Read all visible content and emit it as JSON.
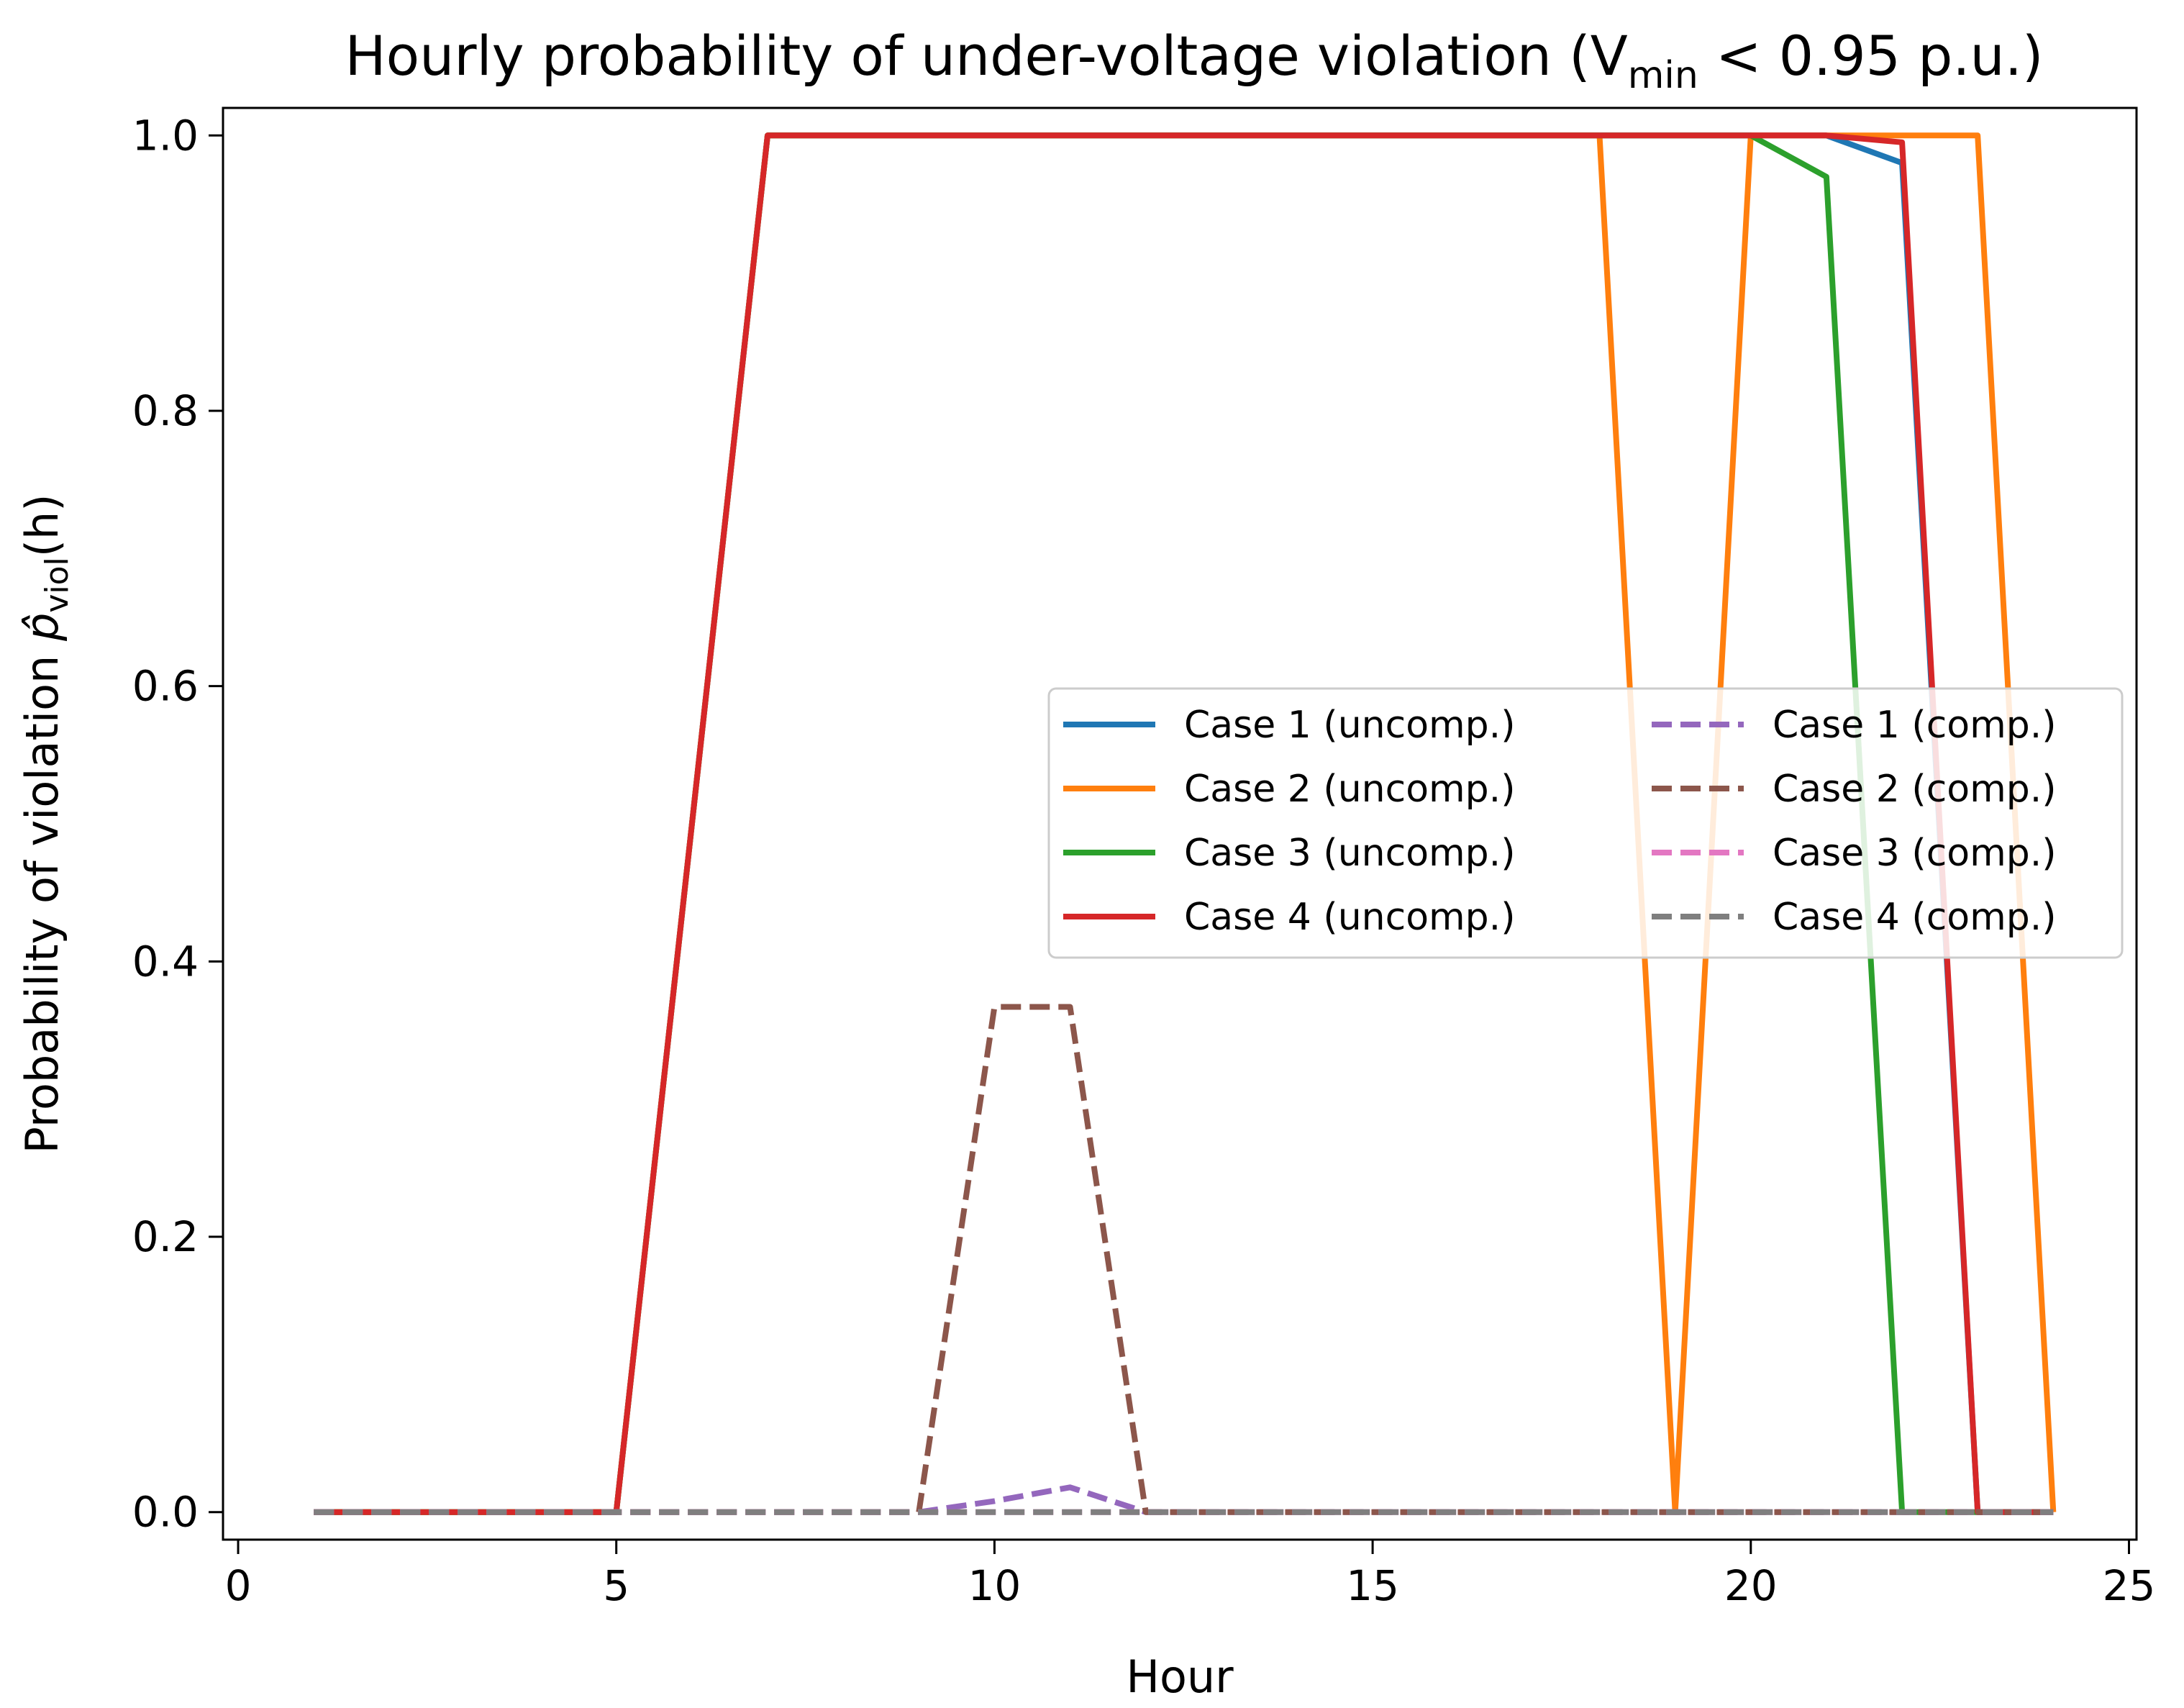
{
  "chart_data": {
    "type": "line",
    "title": "Hourly probability of under-voltage violation (V",
    "title_sub": "min",
    "title_tail": " < 0.95 p.u.)",
    "xlabel": "Hour",
    "ylabel_prefix": "Probability of violation ",
    "ylabel_symbol": "p̂",
    "ylabel_sub": "viol",
    "ylabel_suffix": "(h)",
    "xlim": [
      -0.2,
      25.1
    ],
    "ylim": [
      -0.02,
      1.02
    ],
    "xticks": [
      0,
      5,
      10,
      15,
      20,
      25
    ],
    "xtick_labels": [
      "0",
      "5",
      "10",
      "15",
      "20",
      "25"
    ],
    "yticks": [
      0.0,
      0.2,
      0.4,
      0.6,
      0.8,
      1.0
    ],
    "ytick_labels": [
      "0.0",
      "0.2",
      "0.4",
      "0.6",
      "0.8",
      "1.0"
    ],
    "grid": false,
    "legend_position": "center-right",
    "x": [
      1,
      2,
      3,
      4,
      5,
      6,
      7,
      8,
      9,
      10,
      11,
      12,
      13,
      14,
      15,
      16,
      17,
      18,
      19,
      20,
      21,
      22,
      23,
      24
    ],
    "series": [
      {
        "name": "Case 1 (uncomp.)",
        "color": "#1f77b4",
        "style": "solid",
        "values": [
          0,
          0,
          0,
          0,
          0,
          0.5,
          1,
          1,
          1,
          1,
          1,
          1,
          1,
          1,
          1,
          1,
          1,
          1,
          1,
          1,
          1,
          0.98,
          0,
          0
        ]
      },
      {
        "name": "Case 2 (uncomp.)",
        "color": "#ff7f0e",
        "style": "solid",
        "values": [
          0,
          0,
          0,
          0,
          0,
          0.5,
          1,
          1,
          1,
          1,
          1,
          1,
          1,
          1,
          1,
          1,
          1,
          1,
          0,
          1,
          1,
          1,
          1,
          0
        ]
      },
      {
        "name": "Case 3 (uncomp.)",
        "color": "#2ca02c",
        "style": "solid",
        "values": [
          0,
          0,
          0,
          0,
          0,
          0.5,
          1,
          1,
          1,
          1,
          1,
          1,
          1,
          1,
          1,
          1,
          1,
          1,
          1,
          1,
          0.97,
          0,
          0,
          0
        ]
      },
      {
        "name": "Case 4 (uncomp.)",
        "color": "#d62728",
        "style": "solid",
        "values": [
          0,
          0,
          0,
          0,
          0,
          0.5,
          1,
          1,
          1,
          1,
          1,
          1,
          1,
          1,
          1,
          1,
          1,
          1,
          1,
          1,
          1,
          0.995,
          0,
          0
        ]
      },
      {
        "name": "Case 1 (comp.)",
        "color": "#9467bd",
        "style": "dashed",
        "values": [
          0,
          0,
          0,
          0,
          0,
          0,
          0,
          0,
          0,
          0.008,
          0.018,
          0,
          0,
          0,
          0,
          0,
          0,
          0,
          0,
          0,
          0,
          0,
          0,
          0
        ]
      },
      {
        "name": "Case 2 (comp.)",
        "color": "#8c564b",
        "style": "dashed",
        "values": [
          0,
          0,
          0,
          0,
          0,
          0,
          0,
          0,
          0,
          0.367,
          0.367,
          0,
          0,
          0,
          0,
          0,
          0,
          0,
          0,
          0,
          0,
          0,
          0,
          0
        ]
      },
      {
        "name": "Case 3 (comp.)",
        "color": "#e377c2",
        "style": "dashed",
        "values": [
          0,
          0,
          0,
          0,
          0,
          0,
          0,
          0,
          0,
          0,
          0,
          0,
          0,
          0,
          0,
          0,
          0,
          0,
          0,
          0,
          0,
          0,
          0,
          0
        ]
      },
      {
        "name": "Case 4 (comp.)",
        "color": "#7f7f7f",
        "style": "dashed",
        "values": [
          0,
          0,
          0,
          0,
          0,
          0,
          0,
          0,
          0,
          0,
          0,
          0,
          0,
          0,
          0,
          0,
          0,
          0,
          0,
          0,
          0,
          0,
          0,
          0
        ]
      }
    ]
  }
}
